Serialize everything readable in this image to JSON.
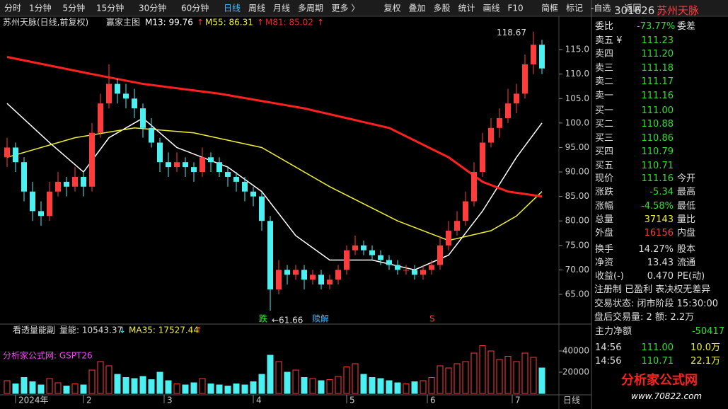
{
  "toolbar": {
    "items": [
      "分时",
      "1分钟",
      "5分钟",
      "15分钟",
      "30分钟",
      "60分钟",
      "日线",
      "周线",
      "月线",
      "多周期",
      "更多 〉",
      "复权",
      "叠加",
      "多股",
      "统计",
      "画线",
      "F10",
      "简框",
      "标记",
      "-自选",
      "返回"
    ]
  },
  "chart_data": {
    "type": "candlestick",
    "title": "苏州天脉(日线,前复权)",
    "indicator": "赢家主图",
    "up_color": "#ff3c3c",
    "down_color": "#4cf0f0",
    "ylim": [
      59.5,
      119.5
    ],
    "yticks": [
      {
        "value": 65,
        "label": "65.00"
      },
      {
        "value": 70,
        "label": "70.00"
      },
      {
        "value": 75,
        "label": "75.00"
      },
      {
        "value": 80,
        "label": "80.00"
      },
      {
        "value": 85,
        "label": "85.00"
      },
      {
        "value": 90,
        "label": "90.00"
      },
      {
        "value": 95,
        "label": "95.00"
      },
      {
        "value": 100,
        "label": "100.0"
      },
      {
        "value": 105,
        "label": "105.0"
      },
      {
        "value": 110,
        "label": "110.0"
      },
      {
        "value": 115,
        "label": "115.0"
      }
    ],
    "xticks": [
      {
        "value": 1,
        "label": "2024年"
      },
      {
        "value": 9,
        "label": "2"
      },
      {
        "value": 18.5,
        "label": "3"
      },
      {
        "value": 29,
        "label": "4"
      },
      {
        "value": 40,
        "label": "5"
      },
      {
        "value": 49.5,
        "label": "6"
      },
      {
        "value": 59.5,
        "label": "7"
      }
    ],
    "candles": [
      [
        93,
        97,
        91,
        95
      ],
      [
        95,
        96,
        90,
        92
      ],
      [
        92,
        93,
        84,
        86
      ],
      [
        86,
        88,
        80,
        82
      ],
      [
        82,
        84,
        79,
        81
      ],
      [
        81,
        88,
        80,
        86
      ],
      [
        86,
        90,
        85,
        88
      ],
      [
        88,
        89,
        85,
        87
      ],
      [
        87,
        91,
        86,
        89
      ],
      [
        89,
        90,
        85,
        87
      ],
      [
        87,
        100,
        86,
        98
      ],
      [
        98,
        106,
        97,
        104
      ],
      [
        104,
        112,
        103,
        108
      ],
      [
        108,
        109,
        104,
        106
      ],
      [
        106,
        108,
        103,
        105
      ],
      [
        105,
        107,
        101,
        103
      ],
      [
        103,
        104,
        97,
        99
      ],
      [
        99,
        101,
        95,
        96
      ],
      [
        96,
        97,
        90,
        92
      ],
      [
        92,
        94,
        89,
        91
      ],
      [
        91,
        94,
        90,
        92
      ],
      [
        92,
        93,
        89,
        91
      ],
      [
        91,
        92,
        88,
        90
      ],
      [
        90,
        95,
        89,
        93
      ],
      [
        93,
        94,
        90,
        92
      ],
      [
        92,
        93,
        89,
        90
      ],
      [
        90,
        91,
        87,
        89
      ],
      [
        89,
        90,
        86,
        88
      ],
      [
        88,
        89,
        84,
        86
      ],
      [
        86,
        87,
        83,
        85
      ],
      [
        85,
        86,
        78,
        80
      ],
      [
        80,
        81,
        61.66,
        66
      ],
      [
        66,
        72,
        65,
        70
      ],
      [
        70,
        71,
        67,
        69
      ],
      [
        69,
        71,
        68,
        70
      ],
      [
        70,
        71,
        66,
        68
      ],
      [
        68,
        70,
        67,
        69
      ],
      [
        69,
        70,
        66,
        67
      ],
      [
        67,
        69,
        66,
        68
      ],
      [
        68,
        71,
        67,
        70
      ],
      [
        70,
        75,
        69,
        74
      ],
      [
        74,
        77,
        73,
        75
      ],
      [
        75,
        76,
        73,
        74
      ],
      [
        74,
        75,
        72,
        73
      ],
      [
        73,
        74,
        71,
        72
      ],
      [
        72,
        73,
        70,
        71
      ],
      [
        71,
        72,
        69,
        70
      ],
      [
        70,
        71,
        69,
        70
      ],
      [
        70,
        71,
        68,
        69
      ],
      [
        69,
        71,
        68,
        70
      ],
      [
        70,
        72,
        69,
        71
      ],
      [
        71,
        77,
        70,
        75
      ],
      [
        75,
        80,
        74,
        78
      ],
      [
        78,
        82,
        77,
        80
      ],
      [
        80,
        86,
        79,
        84
      ],
      [
        84,
        92,
        83,
        90
      ],
      [
        90,
        98,
        89,
        96
      ],
      [
        96,
        101,
        95,
        99
      ],
      [
        99,
        103,
        97,
        101
      ],
      [
        101,
        107,
        100,
        104
      ],
      [
        104,
        108,
        102,
        106
      ],
      [
        106,
        114,
        105,
        112
      ],
      [
        112,
        118.67,
        110,
        116
      ],
      [
        116,
        117,
        110,
        111.16
      ]
    ],
    "series": [
      {
        "label": "M13: 99.76",
        "arrow": "↑",
        "color": "#ffffff",
        "x": [
          0,
          5,
          9,
          12,
          16,
          20,
          26,
          30,
          34,
          38,
          43,
          48,
          52,
          56,
          60,
          63
        ],
        "values": [
          104,
          96,
          90,
          97,
          101,
          95,
          91,
          86,
          77,
          72,
          72,
          70,
          73,
          82,
          93,
          100
        ]
      },
      {
        "label": "M55: 86.31",
        "arrow": "↑",
        "color": "#f0f030",
        "x": [
          0,
          8,
          15,
          22,
          30,
          38,
          46,
          52,
          57,
          60,
          63
        ],
        "values": [
          93,
          97,
          99,
          98,
          95,
          87,
          80,
          76,
          78,
          81,
          86
        ]
      },
      {
        "label": "M81: 85.02",
        "arrow": "↑",
        "color": "#ff2020",
        "x": [
          0,
          10,
          16,
          25,
          35,
          45,
          52,
          56,
          59,
          63
        ],
        "values": [
          113.5,
          110,
          108,
          106,
          103,
          99,
          93,
          88,
          86,
          85
        ]
      }
    ],
    "annotations": {
      "high": "118.67",
      "low": "←61.66",
      "sig1": "跌",
      "sig2": "赎解",
      "sig3": "S"
    },
    "volume": {
      "title": "看透量能副",
      "label": "量能: 10543.37",
      "arrow": "↓",
      "ma_label": "MA35: 17527.44",
      "ma_arrow": "↑",
      "source": "分析家公式网: GSPT26",
      "ylim": [
        0,
        60000
      ],
      "yticks": [
        20000,
        40000
      ],
      "values": [
        12000,
        9000,
        15000,
        11000,
        8000,
        14000,
        10000,
        7000,
        9000,
        8000,
        22000,
        30000,
        26000,
        18000,
        15000,
        14000,
        16000,
        13000,
        20000,
        12000,
        9000,
        8000,
        10000,
        14000,
        9000,
        8000,
        7000,
        9000,
        8000,
        11000,
        18000,
        36000,
        30000,
        20000,
        22000,
        15000,
        14000,
        12000,
        13000,
        16000,
        25000,
        28000,
        18000,
        15000,
        14000,
        12000,
        10000,
        9000,
        11000,
        12000,
        15000,
        26000,
        24000,
        28000,
        30000,
        38000,
        45000,
        40000,
        32000,
        35000,
        30000,
        38000,
        34000,
        24000
      ]
    },
    "period": "日线"
  },
  "quote": {
    "code": "301626",
    "name": "苏州天脉",
    "wb": [
      "委比",
      "-73.77%",
      "委差"
    ],
    "book": [
      [
        "卖五 ¥",
        "111.23"
      ],
      [
        "卖四",
        "111.20"
      ],
      [
        "卖三",
        "111.18"
      ],
      [
        "卖二",
        "111.17"
      ],
      [
        "卖一",
        "111.16"
      ],
      [
        "买一",
        "111.00"
      ],
      [
        "买二",
        "110.88"
      ],
      [
        "买三",
        "110.86"
      ],
      [
        "买四",
        "110.79"
      ],
      [
        "买五",
        "110.71"
      ]
    ],
    "stats": [
      [
        "现价",
        "111.16",
        "今开"
      ],
      [
        "涨跌",
        "-5.34",
        "最高"
      ],
      [
        "涨幅",
        "-4.58%",
        "最低"
      ],
      [
        "总量",
        "37143",
        "量比"
      ],
      [
        "外盘",
        "16156",
        "内盘"
      ],
      [
        "换手",
        "14.27%",
        "股本"
      ],
      [
        "净资",
        "13.43",
        "流通"
      ],
      [
        "收益(-)",
        "0.470",
        "PE(动)"
      ]
    ],
    "info": [
      "注册制 已盈利 表决权无差异",
      "交易状态: 闭市阶段 15:30:00",
      "盘后交易量: 2 额: 2.2万"
    ],
    "net": [
      "主力净额",
      "-50417"
    ],
    "ticks": [
      [
        "14:56",
        "111.00",
        "10.0万"
      ],
      [
        "14:56",
        "110.71",
        "22.1万"
      ]
    ],
    "logo": [
      "分析家公式网",
      "www.70822.com"
    ]
  }
}
